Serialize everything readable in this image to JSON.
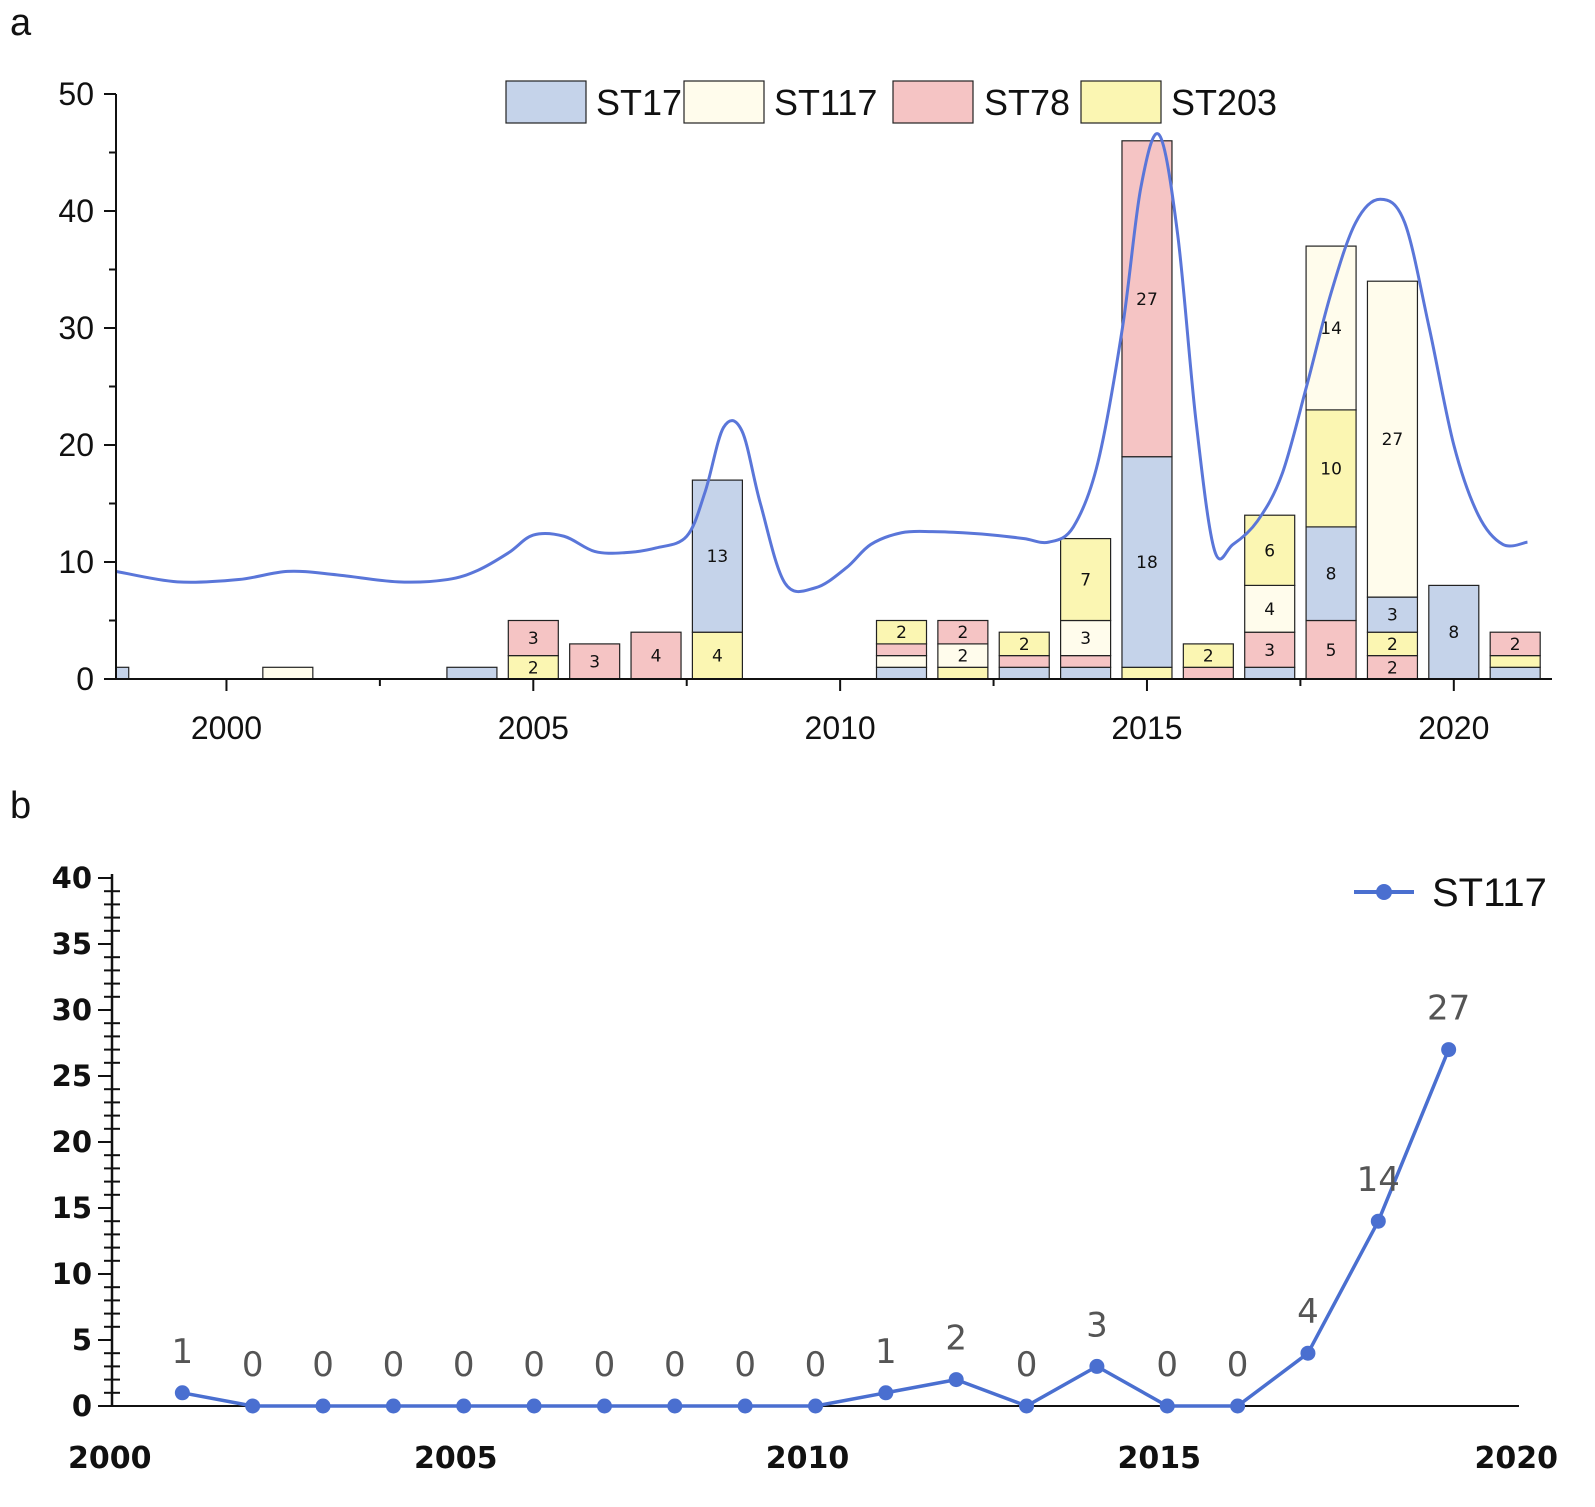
{
  "panels": {
    "a": "a",
    "b": "b"
  },
  "chart_data": [
    {
      "type": "bar",
      "stacked": true,
      "id": "a",
      "xlim": [
        1998.2,
        2021.6
      ],
      "ylim": [
        0,
        50
      ],
      "yticks": [
        0,
        10,
        20,
        30,
        40,
        50
      ],
      "xticks": [
        2000,
        2005,
        2010,
        2015,
        2020
      ],
      "legend_position": "top-center",
      "series": [
        {
          "name": "ST17",
          "color": "#c5d3ea"
        },
        {
          "name": "ST117",
          "color": "#fffcec"
        },
        {
          "name": "ST78",
          "color": "#f5c4c4"
        },
        {
          "name": "ST203",
          "color": "#fbf6b2"
        }
      ],
      "line_color": "#5a76d9",
      "bars": [
        {
          "year": 1998,
          "segments": [
            {
              "series": "ST17",
              "value": 1
            }
          ]
        },
        {
          "year": 2001,
          "segments": [
            {
              "series": "ST117",
              "value": 1
            }
          ]
        },
        {
          "year": 2004,
          "segments": [
            {
              "series": "ST17",
              "value": 1
            }
          ]
        },
        {
          "year": 2005,
          "segments": [
            {
              "series": "ST203",
              "value": 2,
              "label": "2"
            },
            {
              "series": "ST78",
              "value": 3,
              "label": "3"
            }
          ]
        },
        {
          "year": 2006,
          "segments": [
            {
              "series": "ST78",
              "value": 3,
              "label": "3"
            }
          ]
        },
        {
          "year": 2007,
          "segments": [
            {
              "series": "ST78",
              "value": 4,
              "label": "4"
            }
          ]
        },
        {
          "year": 2008,
          "segments": [
            {
              "series": "ST203",
              "value": 4,
              "label": "4"
            },
            {
              "series": "ST17",
              "value": 13,
              "label": "13"
            }
          ]
        },
        {
          "year": 2011,
          "segments": [
            {
              "series": "ST17",
              "value": 1
            },
            {
              "series": "ST117",
              "value": 1
            },
            {
              "series": "ST78",
              "value": 1
            },
            {
              "series": "ST203",
              "value": 2,
              "label": "2"
            }
          ]
        },
        {
          "year": 2012,
          "segments": [
            {
              "series": "ST203",
              "value": 1
            },
            {
              "series": "ST117",
              "value": 2,
              "label": "2"
            },
            {
              "series": "ST78",
              "value": 2,
              "label": "2"
            }
          ]
        },
        {
          "year": 2013,
          "segments": [
            {
              "series": "ST17",
              "value": 1
            },
            {
              "series": "ST78",
              "value": 1
            },
            {
              "series": "ST203",
              "value": 2,
              "label": "2"
            }
          ]
        },
        {
          "year": 2014,
          "segments": [
            {
              "series": "ST17",
              "value": 1
            },
            {
              "series": "ST78",
              "value": 1
            },
            {
              "series": "ST117",
              "value": 3,
              "label": "3"
            },
            {
              "series": "ST203",
              "value": 7,
              "label": "7"
            }
          ]
        },
        {
          "year": 2015,
          "segments": [
            {
              "series": "ST203",
              "value": 1
            },
            {
              "series": "ST17",
              "value": 18,
              "label": "18"
            },
            {
              "series": "ST78",
              "value": 27,
              "label": "27"
            }
          ]
        },
        {
          "year": 2016,
          "segments": [
            {
              "series": "ST78",
              "value": 1
            },
            {
              "series": "ST203",
              "value": 2,
              "label": "2"
            }
          ]
        },
        {
          "year": 2017,
          "segments": [
            {
              "series": "ST17",
              "value": 1
            },
            {
              "series": "ST78",
              "value": 3,
              "label": "3"
            },
            {
              "series": "ST117",
              "value": 4,
              "label": "4"
            },
            {
              "series": "ST203",
              "value": 6,
              "label": "6"
            }
          ]
        },
        {
          "year": 2018,
          "segments": [
            {
              "series": "ST78",
              "value": 5,
              "label": "5"
            },
            {
              "series": "ST17",
              "value": 8,
              "label": "8"
            },
            {
              "series": "ST203",
              "value": 10,
              "label": "10"
            },
            {
              "series": "ST117",
              "value": 14,
              "label": "14"
            }
          ]
        },
        {
          "year": 2019,
          "segments": [
            {
              "series": "ST78",
              "value": 2,
              "label": "2"
            },
            {
              "series": "ST203",
              "value": 2,
              "label": "2"
            },
            {
              "series": "ST17",
              "value": 3,
              "label": "3"
            },
            {
              "series": "ST117",
              "value": 27,
              "label": "27"
            }
          ]
        },
        {
          "year": 2020,
          "segments": [
            {
              "series": "ST17",
              "value": 8,
              "label": "8"
            }
          ]
        },
        {
          "year": 2021,
          "segments": [
            {
              "series": "ST17",
              "value": 1
            },
            {
              "series": "ST203",
              "value": 1
            },
            {
              "series": "ST78",
              "value": 2,
              "label": "2"
            }
          ]
        }
      ],
      "trend_line": {
        "x": [
          1998.2,
          1999.2,
          2000.2,
          2001,
          2001.8,
          2002.8,
          2003.6,
          2004.1,
          2004.6,
          2005,
          2005.5,
          2006,
          2006.5,
          2007,
          2007.5,
          2007.8,
          2008.1,
          2008.4,
          2008.7,
          2009.1,
          2009.6,
          2010.1,
          2010.5,
          2011,
          2011.5,
          2012,
          2012.5,
          2013,
          2013.4,
          2013.8,
          2014.2,
          2014.6,
          2014.9,
          2015.2,
          2015.5,
          2015.8,
          2016.1,
          2016.4,
          2016.8,
          2017.2,
          2017.6,
          2018,
          2018.4,
          2018.8,
          2019.2,
          2019.6,
          2020,
          2020.4,
          2020.8,
          2021.2
        ],
        "y": [
          9.2,
          8.3,
          8.5,
          9.2,
          8.9,
          8.3,
          8.5,
          9.3,
          10.8,
          12.3,
          12.2,
          10.9,
          10.8,
          11.2,
          12.2,
          16,
          21.5,
          21.2,
          15,
          8.2,
          7.8,
          9.5,
          11.5,
          12.5,
          12.6,
          12.5,
          12.3,
          12,
          11.7,
          13,
          18.5,
          30,
          42,
          46.5,
          38,
          22,
          11,
          11.5,
          13.5,
          17.5,
          25,
          33,
          39,
          41,
          39,
          30,
          20,
          14,
          11.5,
          11.7
        ]
      }
    },
    {
      "type": "line",
      "id": "b",
      "series_name": "ST117",
      "color": "#4a6fd0",
      "xlim": [
        2000,
        2020
      ],
      "ylim": [
        0,
        40
      ],
      "yticks": [
        0,
        5,
        10,
        15,
        20,
        25,
        30,
        35,
        40
      ],
      "xticks": [
        2000,
        2005,
        2010,
        2015,
        2020
      ],
      "legend_position": "top-right",
      "x": [
        2001,
        2002,
        2003,
        2004,
        2005,
        2006,
        2007,
        2008,
        2009,
        2010,
        2011,
        2012,
        2013,
        2014,
        2015,
        2016,
        2017,
        2018,
        2019
      ],
      "values": [
        1,
        0,
        0,
        0,
        0,
        0,
        0,
        0,
        0,
        0,
        1,
        2,
        0,
        3,
        0,
        0,
        4,
        14,
        27
      ],
      "labels": [
        "1",
        "0",
        "0",
        "0",
        "0",
        "0",
        "0",
        "0",
        "0",
        "0",
        "1",
        "2",
        "0",
        "3",
        "0",
        "0",
        "4",
        "14",
        "27"
      ]
    }
  ]
}
